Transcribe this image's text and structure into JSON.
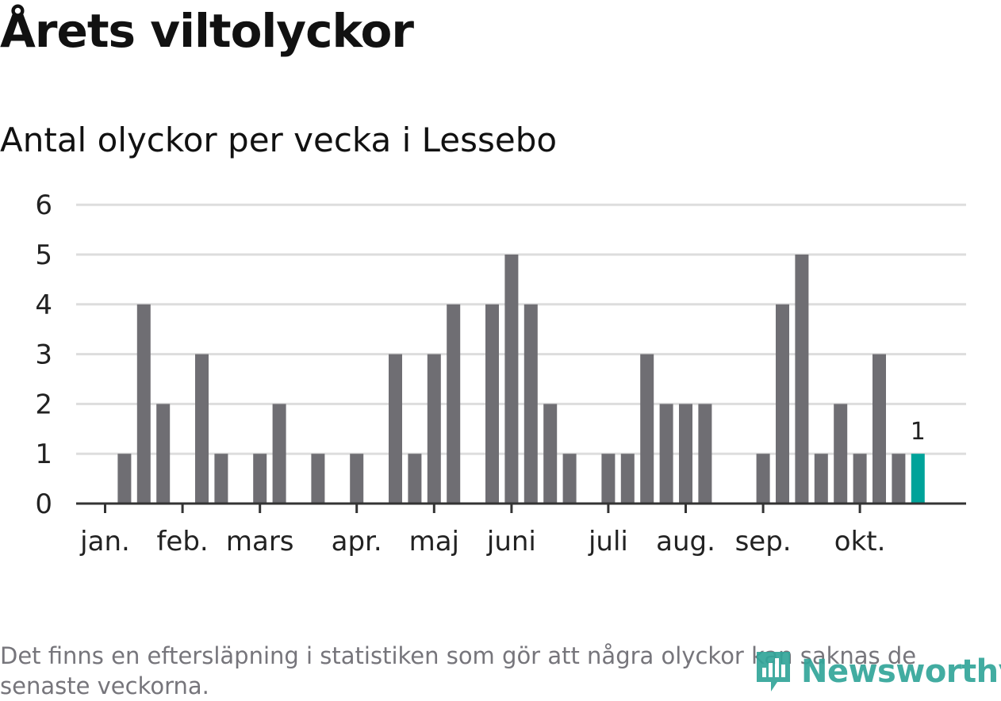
{
  "chart_data": {
    "type": "bar",
    "title": "Årets viltolyckor",
    "subtitle": "Antal olyckor per vecka i Lessebo",
    "xlabel": "",
    "ylabel": "",
    "ylim": [
      0,
      6
    ],
    "yticks": [
      "0",
      "1",
      "2",
      "3",
      "4",
      "5",
      "6"
    ],
    "grid": true,
    "month_labels": [
      "jan.",
      "feb.",
      "mars",
      "apr.",
      "maj",
      "juni",
      "juli",
      "aug.",
      "sep.",
      "okt."
    ],
    "month_start_weeks": [
      1,
      5,
      9,
      14,
      18,
      22,
      27,
      31,
      35,
      40
    ],
    "weeks": [
      1,
      2,
      3,
      4,
      5,
      6,
      7,
      8,
      9,
      10,
      11,
      12,
      13,
      14,
      15,
      16,
      17,
      18,
      19,
      20,
      21,
      22,
      23,
      24,
      25,
      26,
      27,
      28,
      29,
      30,
      31,
      32,
      33,
      34,
      35,
      36,
      37,
      38,
      39,
      40,
      41,
      42,
      43
    ],
    "values": [
      0,
      1,
      4,
      2,
      0,
      3,
      1,
      0,
      1,
      2,
      0,
      1,
      0,
      1,
      0,
      3,
      1,
      3,
      4,
      0,
      4,
      5,
      4,
      2,
      1,
      0,
      1,
      1,
      3,
      2,
      2,
      2,
      0,
      0,
      1,
      4,
      5,
      1,
      2,
      1,
      3,
      1,
      1
    ],
    "highlight_index": 42,
    "highlight_label": "1",
    "colors": {
      "bar": "#6f6e73",
      "highlight": "#00a39a",
      "grid": "#dddddd",
      "axis": "#333333"
    }
  },
  "footnote": "Det finns en eftersläpning i statistiken som gör att några olyckor kan saknas de senaste veckorna.",
  "logo": {
    "text": "Newsworthy",
    "icon": "bar-chart-speech-icon"
  }
}
